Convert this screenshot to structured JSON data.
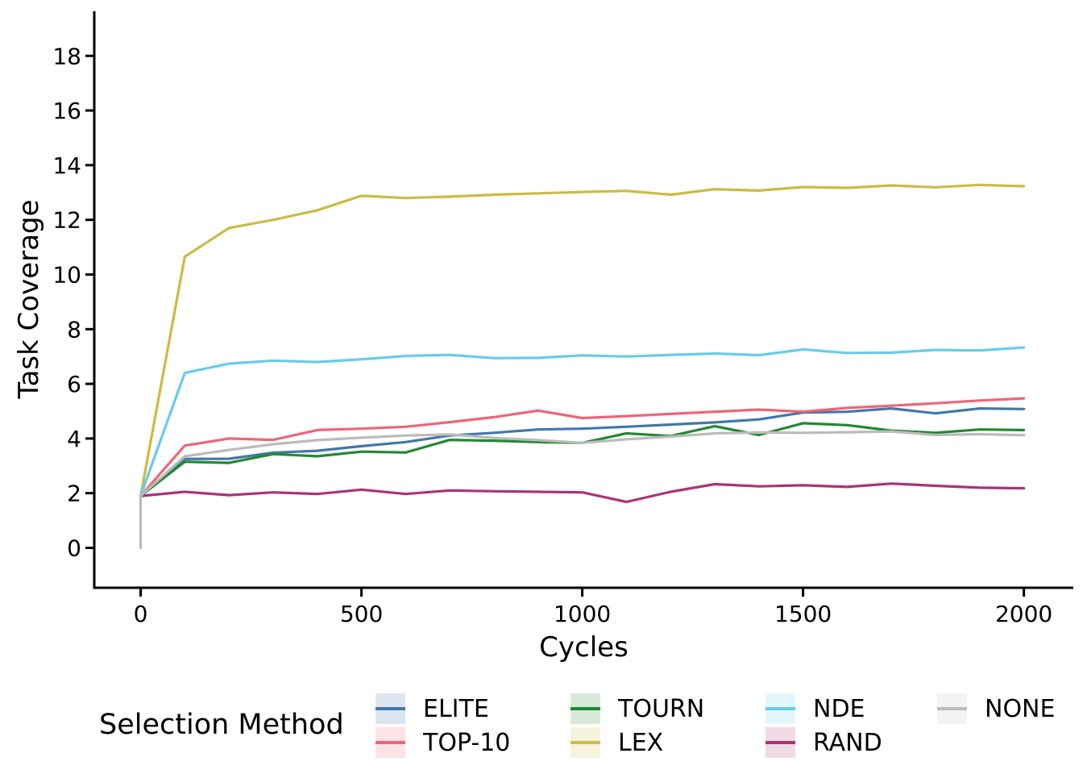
{
  "chart_data": {
    "type": "line",
    "title": "",
    "xlabel": "Cycles",
    "ylabel": "Task Coverage",
    "axis_color": "#000000",
    "grid": false,
    "xlim": [
      -105,
      2112
    ],
    "ylim": [
      -1.46,
      19.63
    ],
    "xticks": {
      "values": [
        0,
        500,
        1000,
        1500,
        2000
      ],
      "labels": [
        "0",
        "500",
        "1000",
        "1500",
        "2000"
      ]
    },
    "yticks": {
      "values": [
        0,
        2,
        4,
        6,
        8,
        10,
        12,
        14,
        16,
        18
      ],
      "labels": [
        "0",
        "2",
        "4",
        "6",
        "8",
        "10",
        "12",
        "14",
        "16",
        "18"
      ]
    },
    "x": [
      0,
      100,
      200,
      300,
      400,
      500,
      600,
      700,
      800,
      900,
      1000,
      1100,
      1200,
      1300,
      1400,
      1500,
      1600,
      1700,
      1800,
      1900,
      2000
    ],
    "series": [
      {
        "name": "ELITE",
        "color": "#4477AA",
        "values": [
          1.9,
          3.25,
          3.26,
          3.48,
          3.55,
          3.72,
          3.87,
          4.11,
          4.21,
          4.33,
          4.36,
          4.43,
          4.51,
          4.59,
          4.7,
          4.95,
          4.98,
          5.1,
          4.92,
          5.1,
          5.08
        ]
      },
      {
        "name": "TOP-10",
        "color": "#EE6677",
        "values": [
          1.9,
          3.74,
          4.0,
          3.95,
          4.31,
          4.36,
          4.43,
          4.6,
          4.78,
          5.02,
          4.75,
          4.82,
          4.9,
          4.98,
          5.06,
          4.98,
          5.12,
          5.2,
          5.29,
          5.39,
          5.47
        ]
      },
      {
        "name": "TOURN",
        "color": "#228833",
        "values": [
          1.9,
          3.15,
          3.11,
          3.43,
          3.35,
          3.52,
          3.49,
          3.95,
          3.92,
          3.87,
          3.84,
          4.19,
          4.09,
          4.45,
          4.13,
          4.56,
          4.49,
          4.29,
          4.21,
          4.33,
          4.31
        ]
      },
      {
        "name": "LEX",
        "color": "#CCBB44",
        "values": [
          1.9,
          10.65,
          11.7,
          12.0,
          12.35,
          12.88,
          12.8,
          12.85,
          12.92,
          12.97,
          13.02,
          13.06,
          12.92,
          13.12,
          13.07,
          13.2,
          13.17,
          13.26,
          13.19,
          13.28,
          13.23
        ]
      },
      {
        "name": "NDE",
        "color": "#66CCEE",
        "values": [
          1.9,
          6.4,
          6.74,
          6.85,
          6.8,
          6.9,
          7.02,
          7.06,
          6.94,
          6.95,
          7.04,
          7.0,
          7.06,
          7.11,
          7.05,
          7.26,
          7.13,
          7.14,
          7.24,
          7.22,
          7.33
        ]
      },
      {
        "name": "RAND",
        "color": "#AA3377",
        "values": [
          1.9,
          2.05,
          1.93,
          2.03,
          1.97,
          2.13,
          1.97,
          2.1,
          2.07,
          2.05,
          2.03,
          1.68,
          2.05,
          2.33,
          2.25,
          2.29,
          2.23,
          2.35,
          2.27,
          2.2,
          2.18
        ]
      },
      {
        "name": "NONE",
        "color": "#BBBBBB",
        "starts_at_zero": true,
        "values": [
          1.9,
          3.35,
          3.58,
          3.79,
          3.94,
          4.03,
          4.11,
          4.15,
          4.02,
          3.94,
          3.84,
          3.97,
          4.07,
          4.19,
          4.22,
          4.21,
          4.23,
          4.26,
          4.13,
          4.16,
          4.12
        ]
      }
    ],
    "legend": {
      "title": "Selection Method",
      "position": "bottom",
      "ncol": 4,
      "entries": [
        "ELITE",
        "TOP-10",
        "TOURN",
        "LEX",
        "NDE",
        "RAND",
        "NONE"
      ]
    }
  }
}
